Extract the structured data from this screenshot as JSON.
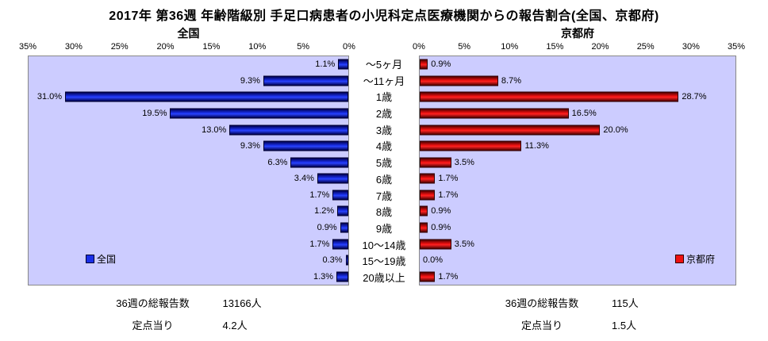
{
  "title": "2017年 第36週 年齢階級別 手足口病患者の小児科定点医療機関からの報告割合(全国、京都府)",
  "chart_data": {
    "type": "bar",
    "orientation": "horizontal-tornado",
    "xmax": 35,
    "grid": false,
    "plot_background": "#ccccff",
    "categories": [
      "～5ヶ月",
      "～11ヶ月",
      "1歳",
      "2歳",
      "3歳",
      "4歳",
      "5歳",
      "6歳",
      "7歳",
      "8歳",
      "9歳",
      "10～14歳",
      "15～19歳",
      "20歳以上"
    ],
    "series": [
      {
        "name": "全国",
        "color": "#1a2fe8",
        "values": [
          1.1,
          9.3,
          31.0,
          19.5,
          13.0,
          9.3,
          6.3,
          3.4,
          1.7,
          1.2,
          0.9,
          1.7,
          0.3,
          1.3
        ]
      },
      {
        "name": "京都府",
        "color": "#ee1111",
        "values": [
          0.9,
          8.7,
          28.7,
          16.5,
          20.0,
          11.3,
          3.5,
          1.7,
          1.7,
          0.9,
          0.9,
          3.5,
          0.0,
          1.7
        ]
      }
    ],
    "left_title": "全国",
    "right_title": "京都府",
    "left_axis_ticks": [
      "35%",
      "30%",
      "25%",
      "20%",
      "15%",
      "10%",
      "5%",
      "0%"
    ],
    "right_axis_ticks": [
      "0%",
      "5%",
      "10%",
      "15%",
      "20%",
      "25%",
      "30%",
      "35%"
    ],
    "legend_position": "inside-bottom"
  },
  "legend": {
    "left": "全国",
    "right": "京都府"
  },
  "footer": {
    "left": {
      "total_label": "36週の総報告数",
      "total_value": "13166人",
      "per_label": "定点当り",
      "per_value": "4.2人"
    },
    "right": {
      "total_label": "36週の総報告数",
      "total_value": "115人",
      "per_label": "定点当り",
      "per_value": "1.5人"
    }
  }
}
